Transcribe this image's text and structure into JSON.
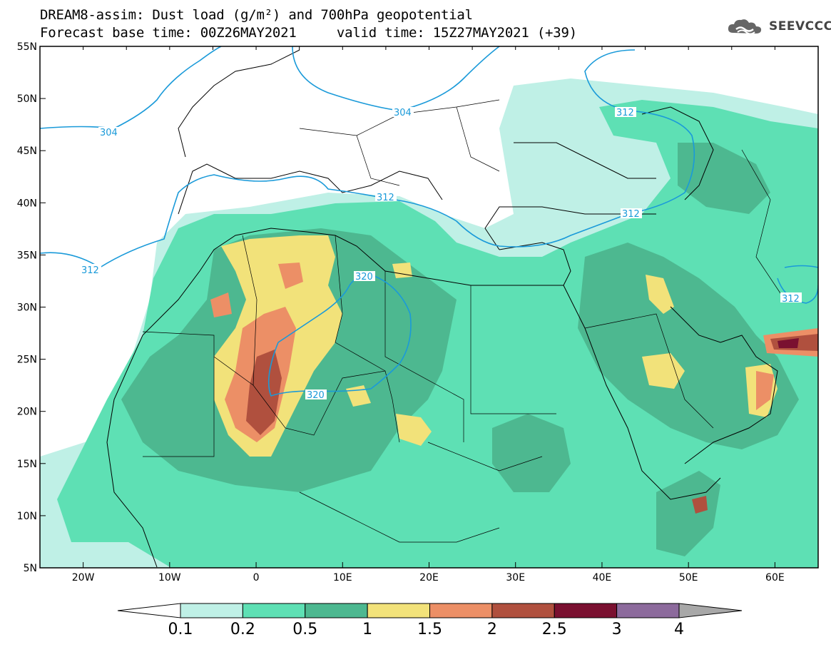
{
  "title": {
    "line1": "DREAM8-assim: Dust load (g/m²) and 700hPa geopotential",
    "line2": "Forecast base time: 00Z26MAY2021     valid time: 15Z27MAY2021 (+39)"
  },
  "logo": {
    "text": "SEEVCCC",
    "icon": "cloud-logo-icon"
  },
  "map": {
    "lon_range": [
      -25,
      65
    ],
    "lat_range": [
      5,
      55
    ],
    "lon_ticks": [
      "20W",
      "10W",
      "0",
      "10E",
      "20E",
      "30E",
      "40E",
      "50E",
      "60E"
    ],
    "lat_ticks": [
      "55N",
      "50N",
      "45N",
      "40N",
      "35N",
      "30N",
      "25N",
      "20N",
      "15N",
      "10N",
      "5N"
    ],
    "contour_labels": [
      "304",
      "304",
      "312",
      "312",
      "312",
      "312",
      "312",
      "320",
      "320"
    ]
  },
  "colorbar": {
    "labels": [
      "0.1",
      "0.2",
      "0.5",
      "1",
      "1.5",
      "2",
      "2.5",
      "3",
      "4"
    ],
    "colors": [
      "#ffffff",
      "#bff0e6",
      "#5ee0b4",
      "#4db890",
      "#f2e27a",
      "#ec8f66",
      "#b0503e",
      "#7a1030",
      "#8c6a9c",
      "#a8a8a8"
    ]
  }
}
